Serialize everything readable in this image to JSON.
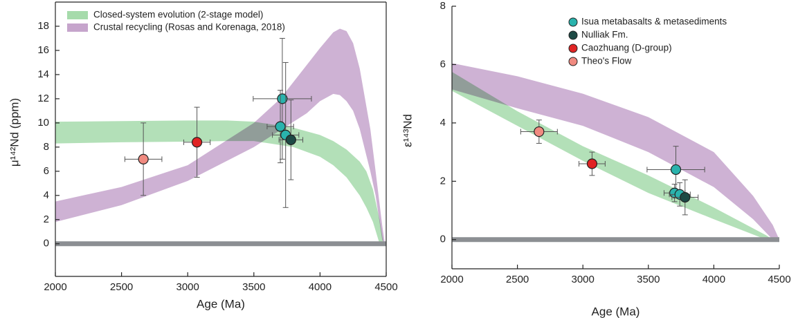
{
  "chart_data": [
    {
      "type": "scatter",
      "x_label": "Age (Ma)",
      "y_label": "μ¹⁴²Nd (ppm)",
      "xlim": [
        2000,
        4500
      ],
      "xticks": [
        2000,
        2500,
        3000,
        3500,
        4000,
        4500
      ],
      "ylim": [
        -2.7,
        20
      ],
      "yticks": [
        0,
        2,
        4,
        6,
        8,
        10,
        12,
        14,
        16,
        18
      ],
      "hlines": [
        0
      ],
      "hline_color": "#8c8f93",
      "legend": "upper left",
      "series": [
        {
          "name": "Closed-system evolution (2-stage model)",
          "kind": "band",
          "color": "#a6dbab",
          "x": [
            2000,
            2500,
            3000,
            3300,
            3500,
            3800,
            4000,
            4100,
            4200,
            4300,
            4350,
            4400,
            4450,
            4480
          ],
          "upper": [
            10.1,
            10.15,
            10.2,
            10.2,
            10.1,
            9.6,
            9.0,
            8.5,
            7.8,
            6.8,
            6.0,
            4.5,
            2.0,
            0
          ],
          "lower": [
            8.3,
            8.4,
            8.45,
            8.5,
            8.5,
            8.0,
            7.2,
            6.5,
            5.5,
            4.0,
            3.0,
            1.8,
            0,
            0
          ]
        },
        {
          "name": "Crustal recycling (Rosas and Korenaga, 2018)",
          "kind": "band",
          "color": "#c6a5cc",
          "x": [
            2000,
            2500,
            3000,
            3500,
            3700,
            3900,
            4000,
            4100,
            4150,
            4200,
            4250,
            4300,
            4380,
            4420,
            4470,
            4490
          ],
          "upper": [
            3.5,
            4.7,
            6.5,
            10.0,
            12.0,
            14.8,
            16.2,
            17.5,
            17.8,
            17.6,
            16.6,
            14.5,
            9.5,
            6.0,
            1.5,
            0
          ],
          "lower": [
            1.8,
            3.2,
            5.2,
            8.0,
            9.4,
            10.8,
            11.8,
            12.4,
            12.3,
            11.8,
            11.0,
            9.5,
            6.0,
            4.0,
            0.3,
            0
          ]
        },
        {
          "color": "#f08a80",
          "x": [
            2665
          ],
          "values": [
            7.0
          ],
          "xerr": [
            140
          ],
          "yerr": [
            3.0
          ]
        },
        {
          "color": "#e02424",
          "x": [
            3070
          ],
          "values": [
            8.4
          ],
          "xerr": [
            100
          ],
          "yerr": [
            2.9
          ]
        },
        {
          "color": "#2ab3ad",
          "x": [
            3715,
            3700,
            3740
          ],
          "values": [
            12.0,
            9.7,
            9.0
          ],
          "xerr": [
            220,
            100,
            100
          ],
          "yerr": [
            5.0,
            3.0,
            6.0
          ]
        },
        {
          "color": "#1d4a45",
          "x": [
            3780
          ],
          "values": [
            8.6
          ],
          "xerr": [
            90
          ],
          "yerr": [
            3.3
          ]
        }
      ]
    },
    {
      "type": "scatter",
      "x_label": "Age (Ma)",
      "y_label": "ε¹⁴³Nd",
      "xlim": [
        2000,
        4500
      ],
      "xticks": [
        2000,
        2500,
        3000,
        3500,
        4000,
        4500
      ],
      "ylim": [
        -1,
        8
      ],
      "yticks": [
        0,
        2,
        4,
        6,
        8
      ],
      "hlines": [
        0
      ],
      "hline_color": "#8c8f93",
      "legend": "upper right",
      "series": [
        {
          "kind": "band",
          "color": "#a6dbab",
          "x": [
            2000,
            2500,
            3000,
            3500,
            4000,
            4400,
            4450
          ],
          "upper": [
            5.75,
            4.4,
            3.2,
            2.2,
            1.1,
            0.15,
            0
          ],
          "lower": [
            5.1,
            3.9,
            2.7,
            1.6,
            0.7,
            0,
            0
          ]
        },
        {
          "kind": "band",
          "color": "#c6a5cc",
          "x": [
            2000,
            2500,
            3000,
            3500,
            4000,
            4300,
            4450,
            4500
          ],
          "upper": [
            6.05,
            5.6,
            5.0,
            4.2,
            3.0,
            1.5,
            0.5,
            0
          ],
          "lower": [
            5.15,
            4.5,
            3.9,
            3.0,
            1.8,
            0.7,
            0,
            0
          ]
        },
        {
          "name": "Isua metabasalts & metasediments",
          "color": "#2ab3ad",
          "x": [
            3710,
            3700,
            3740
          ],
          "values": [
            2.4,
            1.6,
            1.55
          ],
          "xerr": [
            220,
            80,
            80
          ],
          "yerr": [
            0.8,
            0.3,
            0.4
          ]
        },
        {
          "name": "Nulliak Fm.",
          "color": "#1d4a45",
          "x": [
            3780
          ],
          "values": [
            1.45
          ],
          "xerr": [
            100
          ],
          "yerr": [
            0.6
          ]
        },
        {
          "name": "Caozhuang (D-group)",
          "color": "#e02424",
          "x": [
            3070
          ],
          "values": [
            2.6
          ],
          "xerr": [
            100
          ],
          "yerr": [
            0.4
          ]
        },
        {
          "name": "Theo's Flow",
          "color": "#f08a80",
          "x": [
            2665
          ],
          "values": [
            3.7
          ],
          "xerr": [
            140
          ],
          "yerr": [
            0.4
          ]
        }
      ]
    }
  ]
}
